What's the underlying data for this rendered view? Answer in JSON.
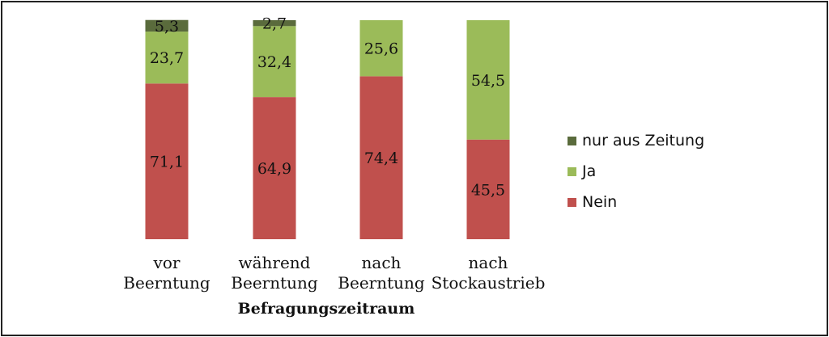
{
  "chart_data": {
    "type": "bar",
    "stacked": true,
    "categories": [
      [
        "vor",
        "Beerntung"
      ],
      [
        "während",
        "Beerntung"
      ],
      [
        "nach",
        "Beerntung"
      ],
      [
        "nach",
        "Stockaustrieb"
      ]
    ],
    "series": [
      {
        "name": "Nein",
        "values": [
          71.1,
          64.9,
          74.4,
          45.5
        ],
        "labels": [
          "71,1",
          "64,9",
          "74,4",
          "45,5"
        ],
        "color": "#c0504d"
      },
      {
        "name": "Ja",
        "values": [
          23.7,
          32.4,
          25.6,
          54.5
        ],
        "labels": [
          "23,7",
          "32,4",
          "25,6",
          "54,5"
        ],
        "color": "#9bbb59"
      },
      {
        "name": "nur aus Zeitung",
        "values": [
          5.3,
          2.7,
          0,
          0
        ],
        "labels": [
          "5,3",
          "2,7",
          "",
          ""
        ],
        "color": "#5a6b3c"
      }
    ],
    "legend_order": [
      "nur aus Zeitung",
      "Ja",
      "Nein"
    ],
    "xlabel": "Befragungszeitraum",
    "ylabel": "",
    "ylim": [
      0,
      100
    ],
    "grid": false,
    "legend_position": "right"
  }
}
